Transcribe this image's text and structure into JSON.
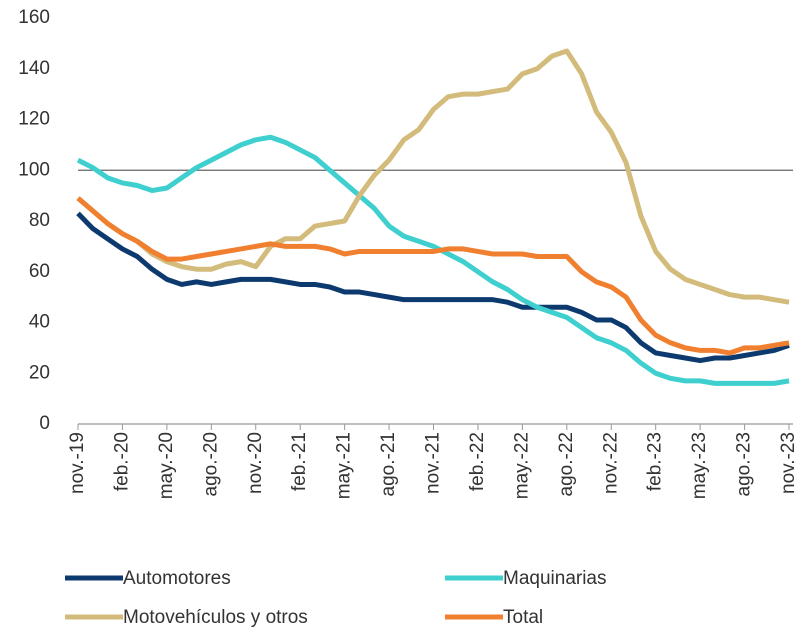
{
  "chart_data": {
    "type": "line",
    "categories": [
      "nov.-19",
      null,
      null,
      "feb.-20",
      null,
      null,
      "may.-20",
      null,
      null,
      "ago.-20",
      null,
      null,
      "nov.-20",
      null,
      null,
      "feb.-21",
      null,
      null,
      "may.-21",
      null,
      null,
      "ago.-21",
      null,
      null,
      "nov.-21",
      null,
      null,
      "feb.-22",
      null,
      null,
      "may.-22",
      null,
      null,
      "ago.-22",
      null,
      null,
      "nov.-22",
      null,
      null,
      "feb.-23",
      null,
      null,
      "may.-23",
      null,
      null,
      "ago.-23",
      null,
      null,
      "nov.-23"
    ],
    "series": [
      {
        "name": "Automotores",
        "color": "#0d3a6e",
        "values": [
          83,
          77,
          73,
          69,
          66,
          61,
          57,
          55,
          56,
          55,
          56,
          57,
          57,
          57,
          56,
          55,
          55,
          54,
          52,
          52,
          51,
          50,
          49,
          49,
          49,
          49,
          49,
          49,
          49,
          48,
          46,
          46,
          46,
          46,
          44,
          41,
          41,
          38,
          32,
          28,
          27,
          26,
          25,
          26,
          26,
          27,
          28,
          29,
          31
        ]
      },
      {
        "name": "Maquinarias",
        "color": "#3fcfcf",
        "values": [
          104,
          101,
          97,
          95,
          94,
          92,
          93,
          97,
          101,
          104,
          107,
          110,
          112,
          113,
          111,
          108,
          105,
          100,
          95,
          90,
          85,
          78,
          74,
          72,
          70,
          67,
          64,
          60,
          56,
          53,
          49,
          46,
          44,
          42,
          38,
          34,
          32,
          29,
          24,
          20,
          18,
          17,
          17,
          16,
          16,
          16,
          16,
          16,
          17
        ]
      },
      {
        "name": "Motovehículos y otros",
        "color": "#d2bb7b",
        "values": [
          89,
          84,
          79,
          75,
          72,
          67,
          64,
          62,
          61,
          61,
          63,
          64,
          62,
          70,
          73,
          73,
          78,
          79,
          80,
          90,
          98,
          104,
          112,
          116,
          124,
          129,
          130,
          130,
          131,
          132,
          138,
          140,
          145,
          147,
          138,
          123,
          115,
          103,
          82,
          68,
          61,
          57,
          55,
          53,
          51,
          50,
          50,
          49,
          48
        ]
      },
      {
        "name": "Total",
        "color": "#f08030",
        "values": [
          89,
          84,
          79,
          75,
          72,
          68,
          65,
          65,
          66,
          67,
          68,
          69,
          70,
          71,
          70,
          70,
          70,
          69,
          67,
          68,
          68,
          68,
          68,
          68,
          68,
          69,
          69,
          68,
          67,
          67,
          67,
          66,
          66,
          66,
          60,
          56,
          54,
          50,
          41,
          35,
          32,
          30,
          29,
          29,
          28,
          30,
          30,
          31,
          32
        ]
      }
    ],
    "ylim": [
      0,
      160
    ],
    "yticks": [
      0,
      20,
      40,
      60,
      80,
      100,
      120,
      140,
      160
    ],
    "hline": 100
  }
}
